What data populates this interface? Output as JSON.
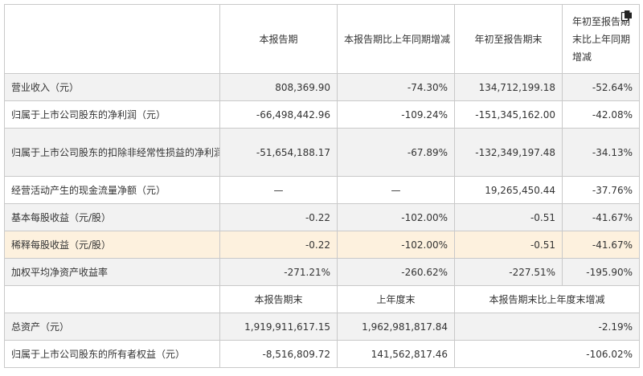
{
  "header": {
    "col1": "本报告期",
    "col2": "本报告期比上年同期增减",
    "col3": "年初至报告期末",
    "col4": "年初至报告期末比上年同期增减",
    "icon": "document-copy-icon"
  },
  "rows": [
    {
      "label": "营业收入（元）",
      "v1": "808,369.90",
      "v2": "-74.30%",
      "v3": "134,712,199.18",
      "v4": "-52.64%"
    },
    {
      "label": "归属于上市公司股东的净利润（元）",
      "v1": "-66,498,442.96",
      "v2": "-109.24%",
      "v3": "-151,345,162.00",
      "v4": "-42.08%"
    },
    {
      "label": "归属于上市公司股东的扣除非经常性损益的净利润（元）",
      "v1": "-51,654,188.17",
      "v2": "-67.89%",
      "v3": "-132,349,197.48",
      "v4": "-34.13%"
    },
    {
      "label": "经营活动产生的现金流量净额（元）",
      "v1": "—",
      "v2": "—",
      "v3": "19,265,450.44",
      "v4": "-37.76%"
    },
    {
      "label": "基本每股收益（元/股）",
      "v1": "-0.22",
      "v2": "-102.00%",
      "v3": "-0.51",
      "v4": "-41.67%"
    },
    {
      "label": "稀释每股收益（元/股）",
      "v1": "-0.22",
      "v2": "-102.00%",
      "v3": "-0.51",
      "v4": "-41.67%"
    },
    {
      "label": "加权平均净资产收益率",
      "v1": "-271.21%",
      "v2": "-260.62%",
      "v3": "-227.51%",
      "v4": "-195.90%"
    }
  ],
  "subheader": {
    "col1": "本报告期末",
    "col2": "上年度末",
    "col3": "本报告期末比上年度末增减"
  },
  "rows2": [
    {
      "label": "总资产（元）",
      "v1": "1,919,911,617.15",
      "v2": "1,962,981,817.84",
      "v3": "-2.19%"
    },
    {
      "label": "归属于上市公司股东的所有者权益（元）",
      "v1": "-8,516,809.72",
      "v2": "141,562,817.46",
      "v3": "-106.02%"
    }
  ],
  "colors": {
    "row_gray": "#f2f2f2",
    "row_highlight": "#fdf1de",
    "border": "#c9c9c9"
  }
}
